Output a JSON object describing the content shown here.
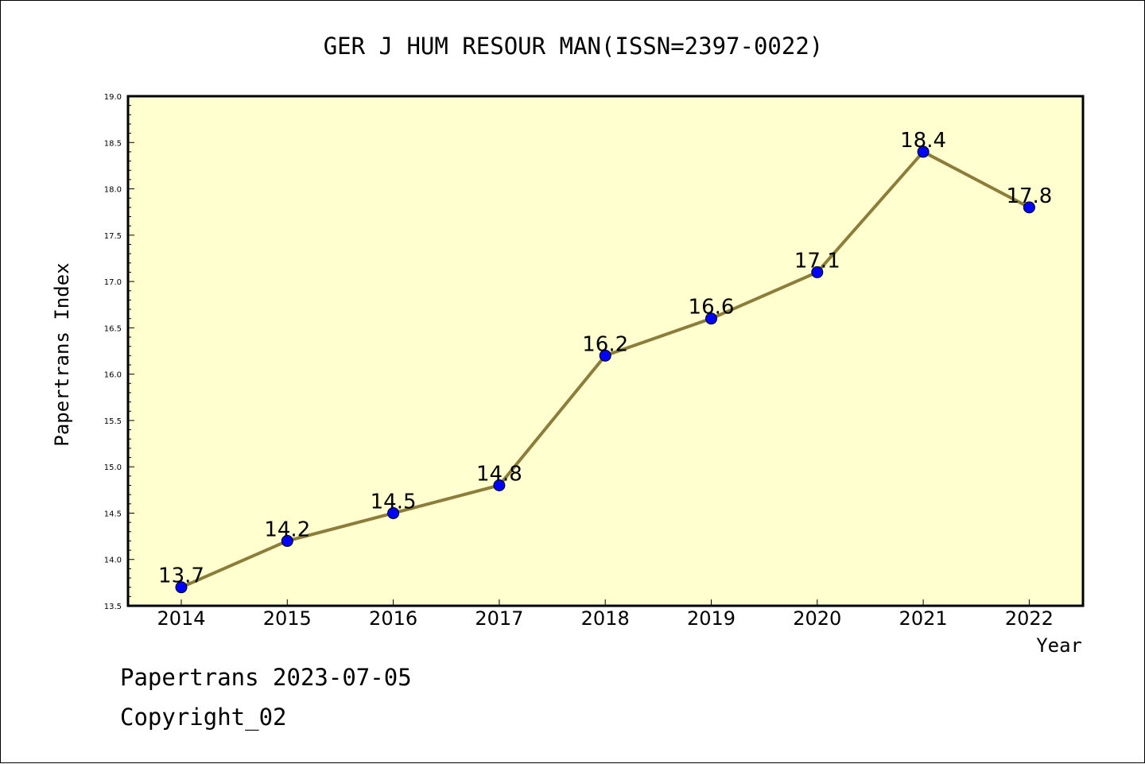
{
  "chart_data": {
    "type": "line",
    "title": "GER J HUM RESOUR MAN(ISSN=2397-0022)",
    "xlabel": "Year",
    "ylabel": "Papertrans Index",
    "categories": [
      "2014",
      "2015",
      "2016",
      "2017",
      "2018",
      "2019",
      "2020",
      "2021",
      "2022"
    ],
    "values": [
      13.7,
      14.2,
      14.5,
      14.8,
      16.2,
      16.6,
      17.1,
      18.4,
      17.8
    ],
    "value_labels": [
      "13.7",
      "14.2",
      "14.5",
      "14.8",
      "16.2",
      "16.6",
      "17.1",
      "18.4",
      "17.8"
    ],
    "ylim": [
      13.5,
      19.0
    ],
    "yticks": [
      "13.5",
      "14.0",
      "14.5",
      "15.0",
      "15.5",
      "16.0",
      "16.5",
      "17.0",
      "17.5",
      "18.0",
      "18.5",
      "19.0"
    ],
    "grid": false,
    "legend": "none",
    "colors": {
      "plot_background": "#ffffd0",
      "line": "#8c7e3a",
      "marker": "#0000ff"
    }
  },
  "footer": {
    "date_text": "Papertrans 2023-07-05",
    "copyright_text": "Copyright_02"
  }
}
